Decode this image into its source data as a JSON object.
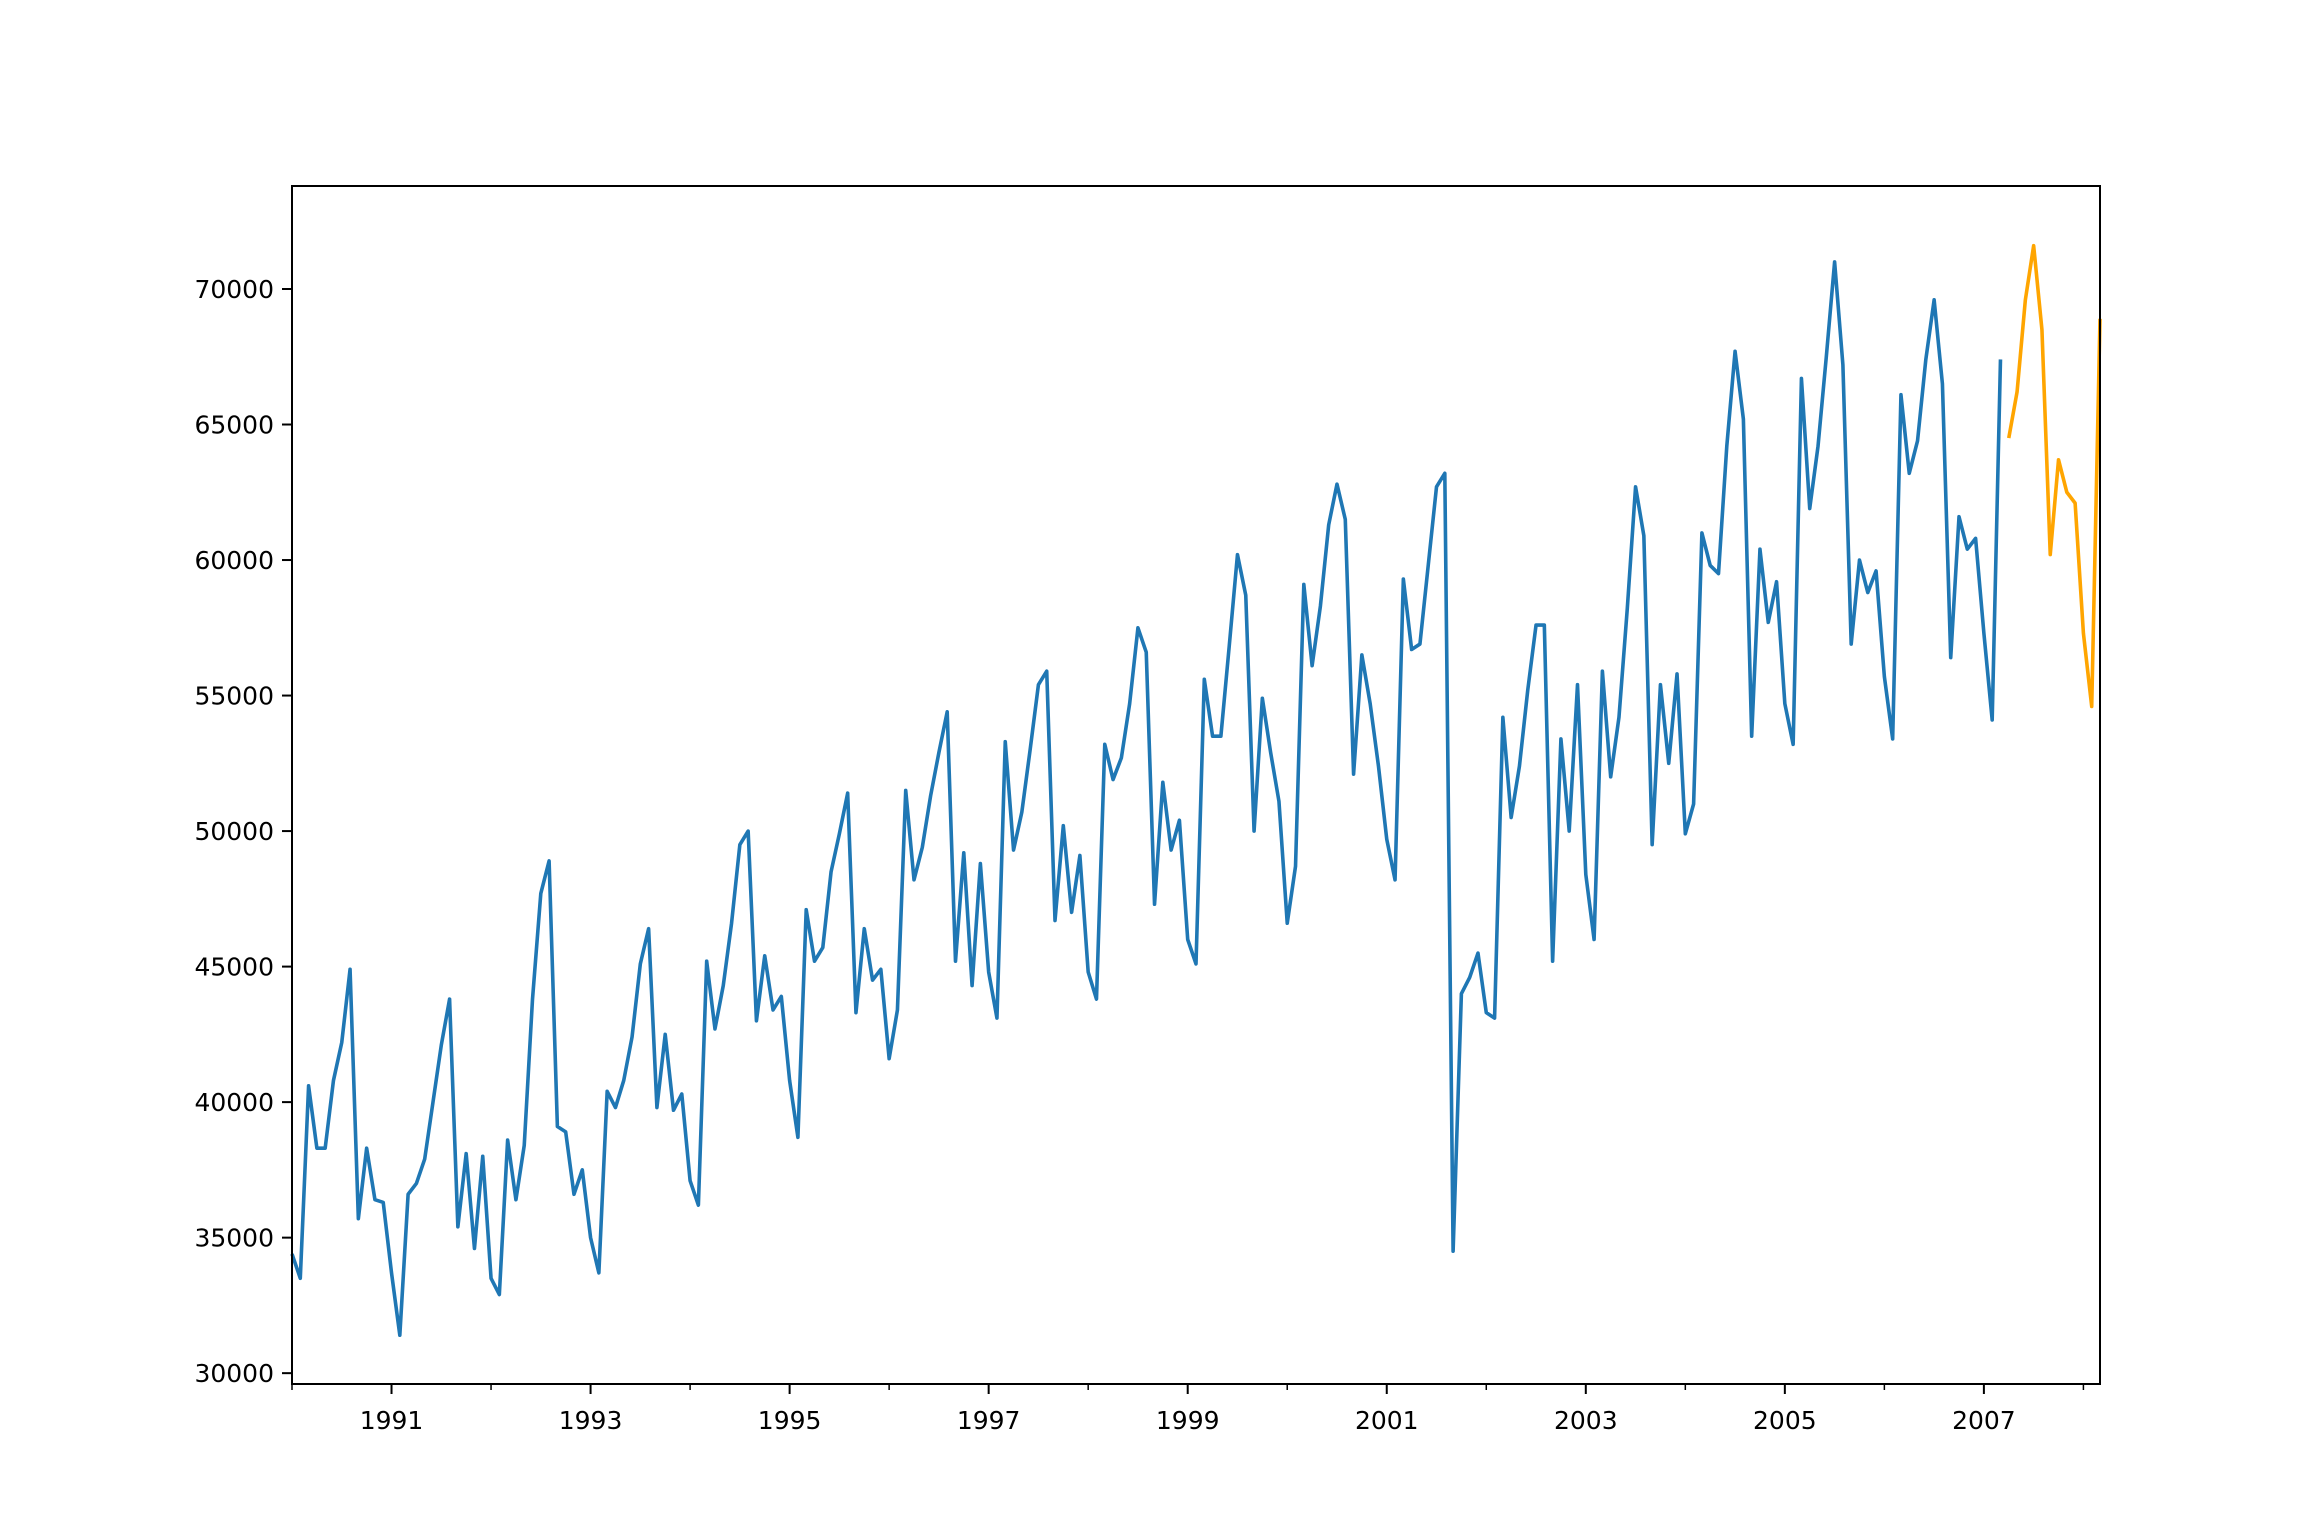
{
  "chart_data": {
    "type": "line",
    "title": "",
    "xlabel": "",
    "ylabel": "",
    "x_axis": {
      "type": "date",
      "range": [
        "1990-01",
        "2008-03"
      ],
      "tick_labels": [
        "1991",
        "1993",
        "1995",
        "1997",
        "1999",
        "2001",
        "2003",
        "2005",
        "2007"
      ],
      "tick_dates": [
        "1991-01",
        "1993-01",
        "1995-01",
        "1997-01",
        "1999-01",
        "2001-01",
        "2003-01",
        "2005-01",
        "2007-01"
      ],
      "minor_tick_dates": [
        "1990-01",
        "1992-01",
        "1994-01",
        "1996-01",
        "1998-01",
        "2000-01",
        "2002-01",
        "2004-01",
        "2006-01",
        "2008-01"
      ]
    },
    "y_axis": {
      "range": [
        29600,
        73800
      ],
      "ticks": [
        30000,
        35000,
        40000,
        45000,
        50000,
        55000,
        60000,
        65000,
        70000
      ],
      "tick_labels": [
        "30000",
        "35000",
        "40000",
        "45000",
        "50000",
        "55000",
        "60000",
        "65000",
        "70000"
      ]
    },
    "grid": false,
    "legend": "none",
    "series": [
      {
        "color": "#1f77b4",
        "start": "1990-01",
        "frequency": "monthly",
        "values": [
          34400,
          33500,
          40600,
          38300,
          38300,
          40800,
          42200,
          44900,
          35700,
          38300,
          36400,
          36300,
          33700,
          31400,
          36600,
          37000,
          37900,
          40000,
          42100,
          43800,
          35400,
          38100,
          34600,
          38000,
          33500,
          32900,
          38600,
          36400,
          38400,
          43800,
          47700,
          48900,
          39100,
          38900,
          36600,
          37500,
          35000,
          33700,
          40400,
          39800,
          40800,
          42400,
          45100,
          46400,
          39800,
          42500,
          39700,
          40300,
          37100,
          36200,
          45200,
          42700,
          44300,
          46600,
          49500,
          50000,
          43000,
          45400,
          43400,
          43900,
          40800,
          38700,
          47100,
          45200,
          45700,
          48500,
          49900,
          51400,
          43300,
          46400,
          44500,
          44900,
          41600,
          43400,
          51500,
          48200,
          49400,
          51300,
          52900,
          54400,
          45200,
          49200,
          44300,
          48800,
          44800,
          43100,
          53300,
          49300,
          50700,
          53000,
          55400,
          55900,
          46700,
          50200,
          47000,
          49100,
          44800,
          43800,
          53200,
          51900,
          52700,
          54700,
          57500,
          56600,
          47300,
          51800,
          49300,
          50400,
          46000,
          45100,
          55600,
          53500,
          53500,
          56800,
          60200,
          58700,
          50000,
          54900,
          52900,
          51100,
          46600,
          48700,
          59100,
          56100,
          58300,
          61300,
          62800,
          61500,
          52100,
          56500,
          54700,
          52400,
          49700,
          48200,
          59300,
          56700,
          56900,
          59800,
          62700,
          63200,
          34500,
          44000,
          44600,
          45500,
          43300,
          43100,
          54200,
          50500,
          52400,
          55200,
          57600,
          57600,
          45200,
          53400,
          50000,
          55400,
          48400,
          46000,
          55900,
          52000,
          54200,
          58200,
          62700,
          60900,
          49500,
          55400,
          52500,
          55800,
          49900,
          51000,
          61000,
          59800,
          59500,
          64200,
          67700,
          65200,
          53500,
          60400,
          57700,
          59200,
          54700,
          53200,
          66700,
          61900,
          64200,
          67500,
          71000,
          67200,
          56900,
          60000,
          58800,
          59600,
          55700,
          53400,
          66100,
          63200,
          64400,
          67400,
          69600,
          66500,
          56400,
          61600,
          60400,
          60800,
          57300,
          54100,
          67400
        ]
      },
      {
        "color": "#ffa500",
        "start": "2007-04",
        "frequency": "monthly",
        "values": [
          64500,
          66200,
          69600,
          71600,
          68500,
          60200,
          63700,
          62500,
          62100,
          57300,
          54600,
          68900
        ]
      }
    ]
  }
}
